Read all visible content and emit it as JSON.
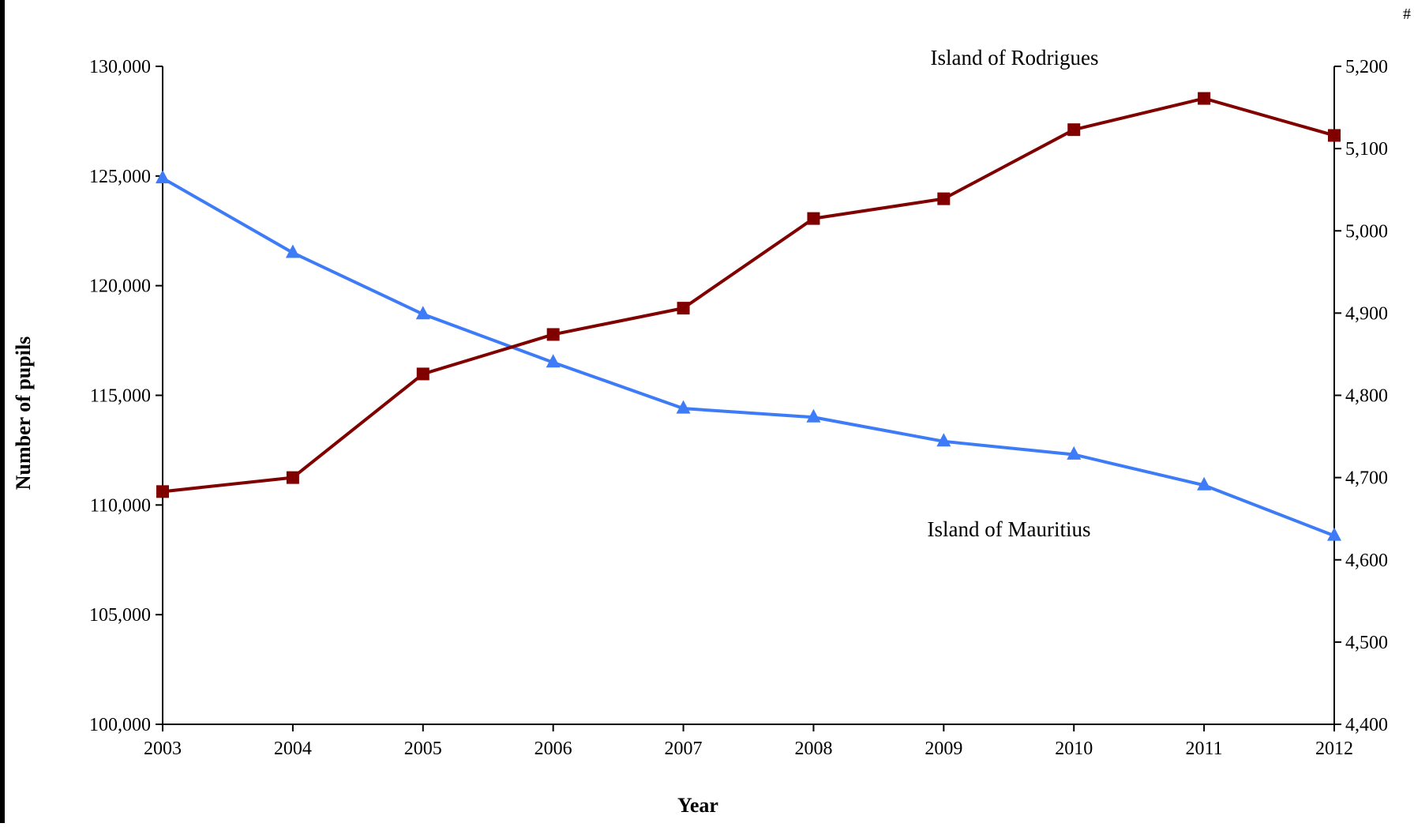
{
  "chart_data": {
    "type": "line",
    "title": "",
    "xlabel": "Year",
    "ylabel": "Number of pupils",
    "y2label": "",
    "corner_mark": "#",
    "categories": [
      "2003",
      "2004",
      "2005",
      "2006",
      "2007",
      "2008",
      "2009",
      "2010",
      "2011",
      "2012"
    ],
    "ylim": [
      100000,
      130000
    ],
    "y_ticks": [
      100000,
      105000,
      110000,
      115000,
      120000,
      125000,
      130000
    ],
    "y_tick_labels": [
      "100,000",
      "105,000",
      "110,000",
      "115,000",
      "120,000",
      "125,000",
      "130,000"
    ],
    "y2lim": [
      4400,
      5200
    ],
    "y2_ticks": [
      4400,
      4500,
      4600,
      4700,
      4800,
      4900,
      5000,
      5100,
      5200
    ],
    "y2_tick_labels": [
      "4,400",
      "4,500",
      "4,600",
      "4,700",
      "4,800",
      "4,900",
      "5,000",
      "5,100",
      "5,200"
    ],
    "grid": false,
    "series": [
      {
        "name": "Island of Mauritius",
        "axis": "left",
        "marker": "triangle",
        "color": "#3d7bf7",
        "values": [
          124900,
          121500,
          118700,
          116500,
          114400,
          114000,
          112900,
          112300,
          110900,
          108600
        ]
      },
      {
        "name": "Island of Rodrigues",
        "axis": "right",
        "marker": "square",
        "color": "#800000",
        "values": [
          4683,
          4700,
          4826,
          4874,
          4906,
          5015,
          5039,
          5123,
          5161,
          5116
        ]
      }
    ]
  }
}
